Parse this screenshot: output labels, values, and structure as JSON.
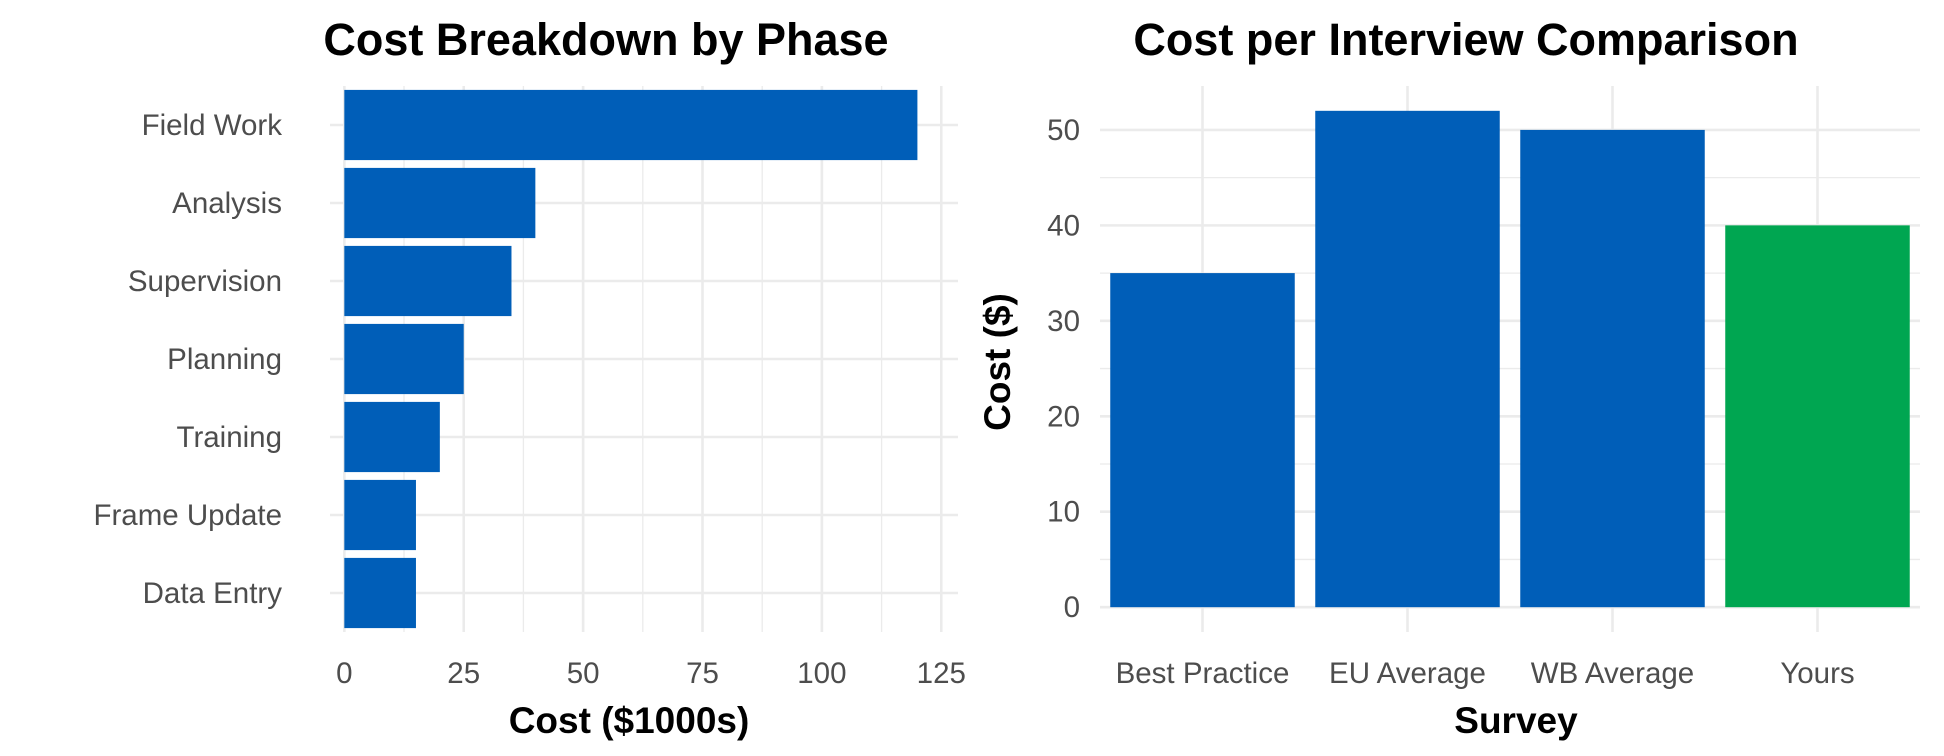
{
  "chart_data": [
    {
      "type": "bar",
      "orientation": "horizontal",
      "title": "Cost Breakdown by Phase",
      "xlabel": "Cost ($1000s)",
      "ylabel": "",
      "categories": [
        "Data Entry",
        "Frame Update",
        "Training",
        "Planning",
        "Supervision",
        "Analysis",
        "Field Work"
      ],
      "values": [
        15,
        15,
        20,
        25,
        35,
        40,
        120
      ],
      "colors": [
        "#005EB8",
        "#005EB8",
        "#005EB8",
        "#005EB8",
        "#005EB8",
        "#005EB8",
        "#005EB8"
      ],
      "xlim": [
        0,
        125
      ],
      "xticks": [
        "0",
        "25",
        "50",
        "75",
        "100",
        "125"
      ],
      "xtick_values": [
        0,
        25,
        50,
        75,
        100,
        125
      ],
      "grid": true,
      "legend": "none"
    },
    {
      "type": "bar",
      "orientation": "vertical",
      "title": "Cost per Interview Comparison",
      "xlabel": "Survey",
      "ylabel": "Cost ($)",
      "categories": [
        "Best Practice",
        "EU Average",
        "WB Average",
        "Yours"
      ],
      "values": [
        35,
        52,
        50,
        40
      ],
      "colors": [
        "#005EB8",
        "#005EB8",
        "#005EB8",
        "#00A651"
      ],
      "ylim": [
        0,
        52
      ],
      "yticks": [
        "0",
        "10",
        "20",
        "30",
        "40",
        "50"
      ],
      "ytick_values": [
        0,
        10,
        20,
        30,
        40,
        50
      ],
      "grid": true,
      "legend": "none"
    }
  ]
}
